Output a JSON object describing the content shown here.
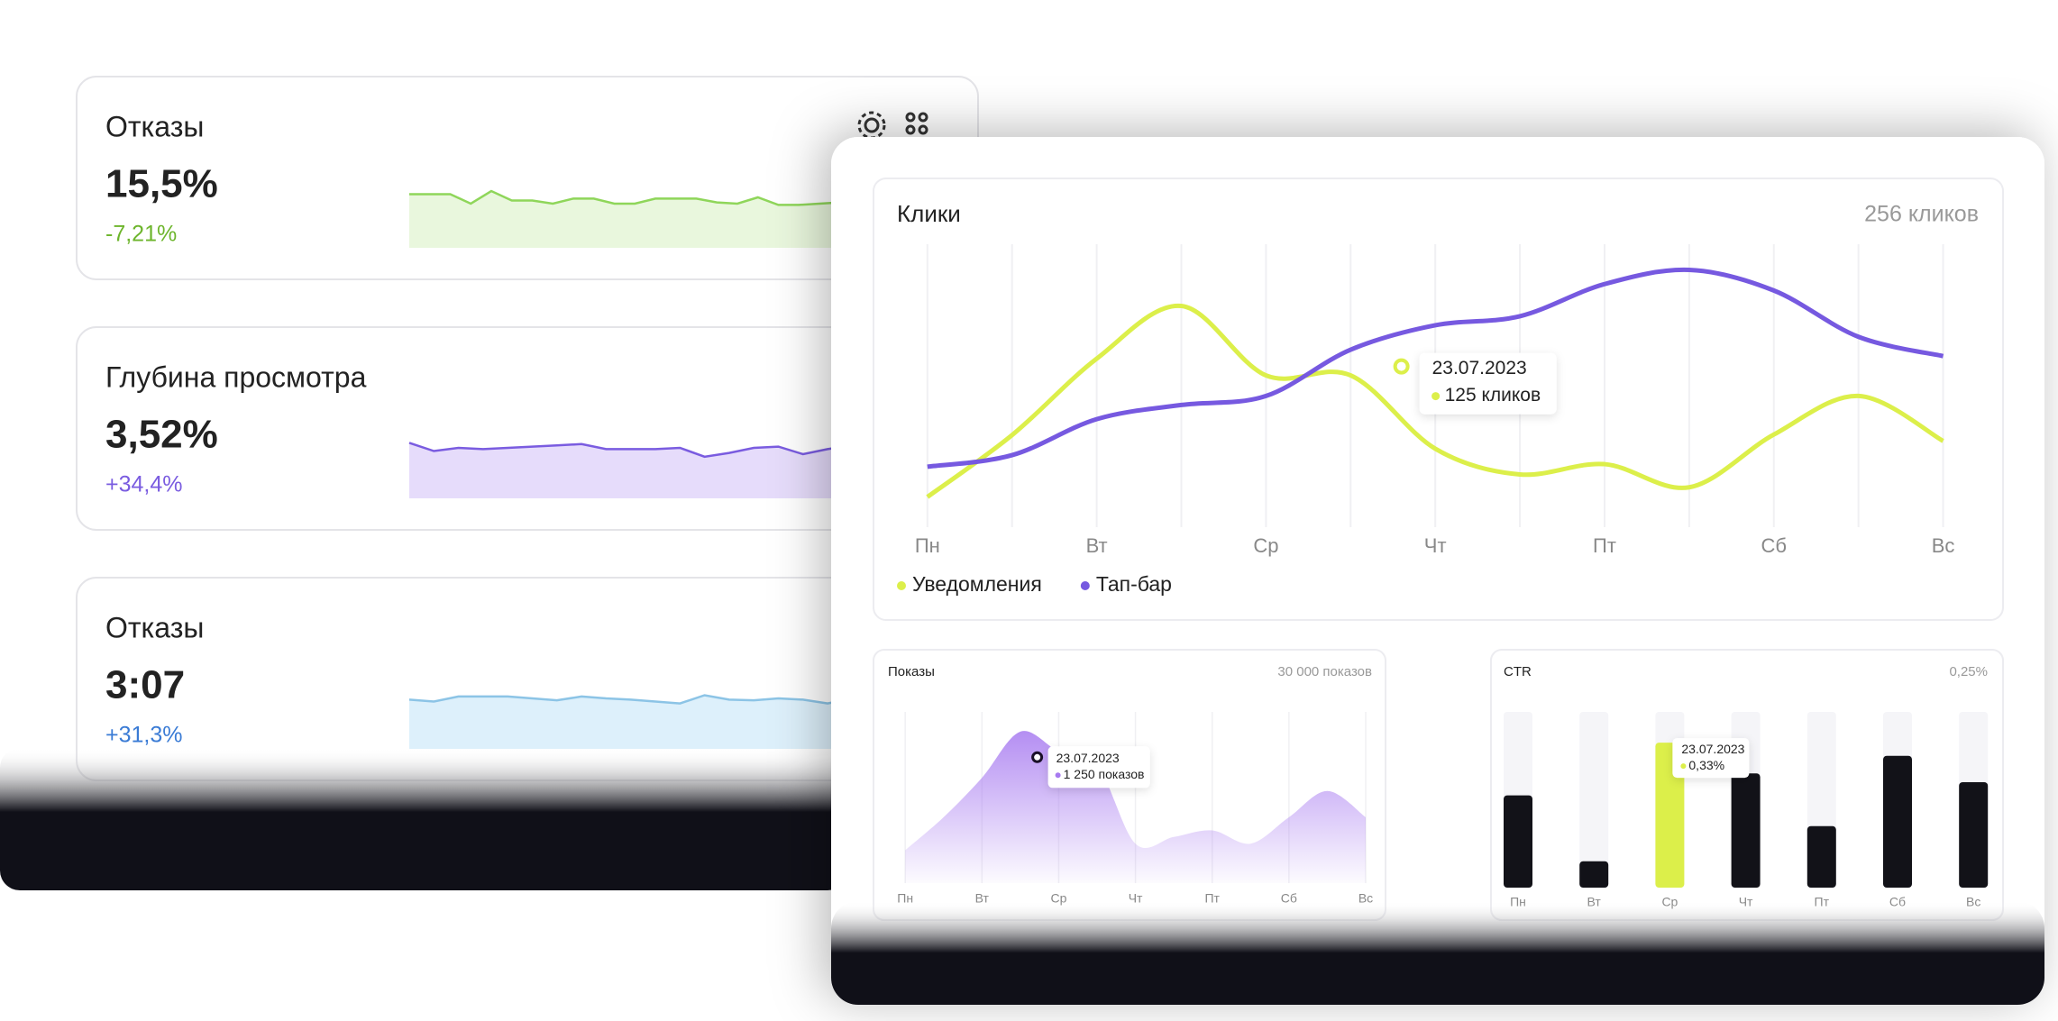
{
  "cards": [
    {
      "title": "Отказы",
      "value": "15,5%",
      "change": "-7,21%",
      "change_color": "#6db52c",
      "color": "#8fd65a",
      "fill": "#e9f7dd",
      "spark": {
        "ylim": [
          0,
          100
        ],
        "values": [
          85,
          85,
          85,
          70,
          90,
          75,
          75,
          70,
          78,
          78,
          70,
          70,
          78,
          78,
          78,
          72,
          70,
          80,
          68,
          68,
          70,
          72,
          80,
          82,
          78
        ]
      }
    },
    {
      "title": "Глубина просмотра",
      "value": "3,52%",
      "change": "+34,4%",
      "change_color": "#7a5ce0",
      "color": "#7a5ce0",
      "fill": "#e6dcfb",
      "spark": {
        "ylim": [
          0,
          100
        ],
        "values": [
          88,
          75,
          80,
          78,
          80,
          82,
          84,
          86,
          78,
          78,
          78,
          80,
          66,
          72,
          80,
          82,
          70,
          78,
          84,
          85,
          80
        ]
      }
    },
    {
      "title": "Отказы",
      "value": "3:07",
      "change": "+31,3%",
      "change_color": "#3a7bd5",
      "color": "#8cc4e6",
      "fill": "#ddf0fb",
      "spark": {
        "ylim": [
          0,
          100
        ],
        "values": [
          78,
          75,
          83,
          83,
          83,
          80,
          77,
          83,
          80,
          78,
          75,
          72,
          85,
          78,
          77,
          80,
          78,
          72,
          80,
          78,
          80
        ]
      }
    }
  ],
  "clicks": {
    "title": "Клики",
    "total": "256 кликов",
    "days": [
      "Пн",
      "Вт",
      "Ср",
      "Чт",
      "Пт",
      "Сб",
      "Вс"
    ],
    "xlim": [
      -0.18,
      6.21
    ],
    "ylim": [
      0,
      220
    ],
    "x": [
      0,
      0.5,
      1,
      1.5,
      2,
      2.5,
      3,
      3.5,
      4,
      4.5,
      5,
      5.5,
      6
    ],
    "series": [
      {
        "name": "Уведомления",
        "color": "#dcef4a",
        "values": [
          23.5,
          71.6,
          131,
          172,
          118,
          118,
          61,
          41,
          49,
          31,
          72,
          102,
          67
        ]
      },
      {
        "name": "Тап-бар",
        "color": "#7659e0",
        "values": [
          47,
          56,
          84,
          95,
          102,
          138,
          157,
          164,
          189,
          200,
          184,
          148,
          133
        ]
      }
    ],
    "tooltip": {
      "date": "23.07.2023",
      "x": 2.8,
      "value": 125,
      "value_label": "125 кликов"
    }
  },
  "impressions": {
    "title": "Показы",
    "total": "30 000 показов",
    "days": [
      "Пн",
      "Вт",
      "Ср",
      "Чт",
      "Пт",
      "Сб",
      "Вс"
    ],
    "xlim": [
      -0.19,
      6
    ],
    "ylim": [
      0,
      1700
    ],
    "color": "#a77af0",
    "x": [
      0,
      0.5,
      1,
      1.5,
      2,
      2.5,
      3,
      3.5,
      4,
      4.5,
      5,
      5.5,
      6
    ],
    "values": [
      327,
      654,
      1046,
      1504,
      1308,
      1177,
      392,
      458,
      523,
      392,
      654,
      915,
      654
    ],
    "tooltip": {
      "date": "23.07.2023",
      "x": 1.72,
      "value": 1250,
      "value_label": "1 250 показов"
    }
  },
  "ctr": {
    "title": "CTR",
    "total": "0,25%",
    "days": [
      "Пн",
      "Вт",
      "Ср",
      "Чт",
      "Пт",
      "Сб",
      "Вс"
    ],
    "ylim": [
      0,
      0.4
    ],
    "values": [
      0.21,
      0.06,
      0.33,
      0.26,
      0.14,
      0.3,
      0.24
    ],
    "colors": [
      "#121218",
      "#121218",
      "#dcef4a",
      "#121218",
      "#121218",
      "#121218",
      "#121218"
    ],
    "tooltip": {
      "date": "23.07.2023",
      "x": 2,
      "value": 0.33,
      "value_label": "0,33%"
    }
  }
}
